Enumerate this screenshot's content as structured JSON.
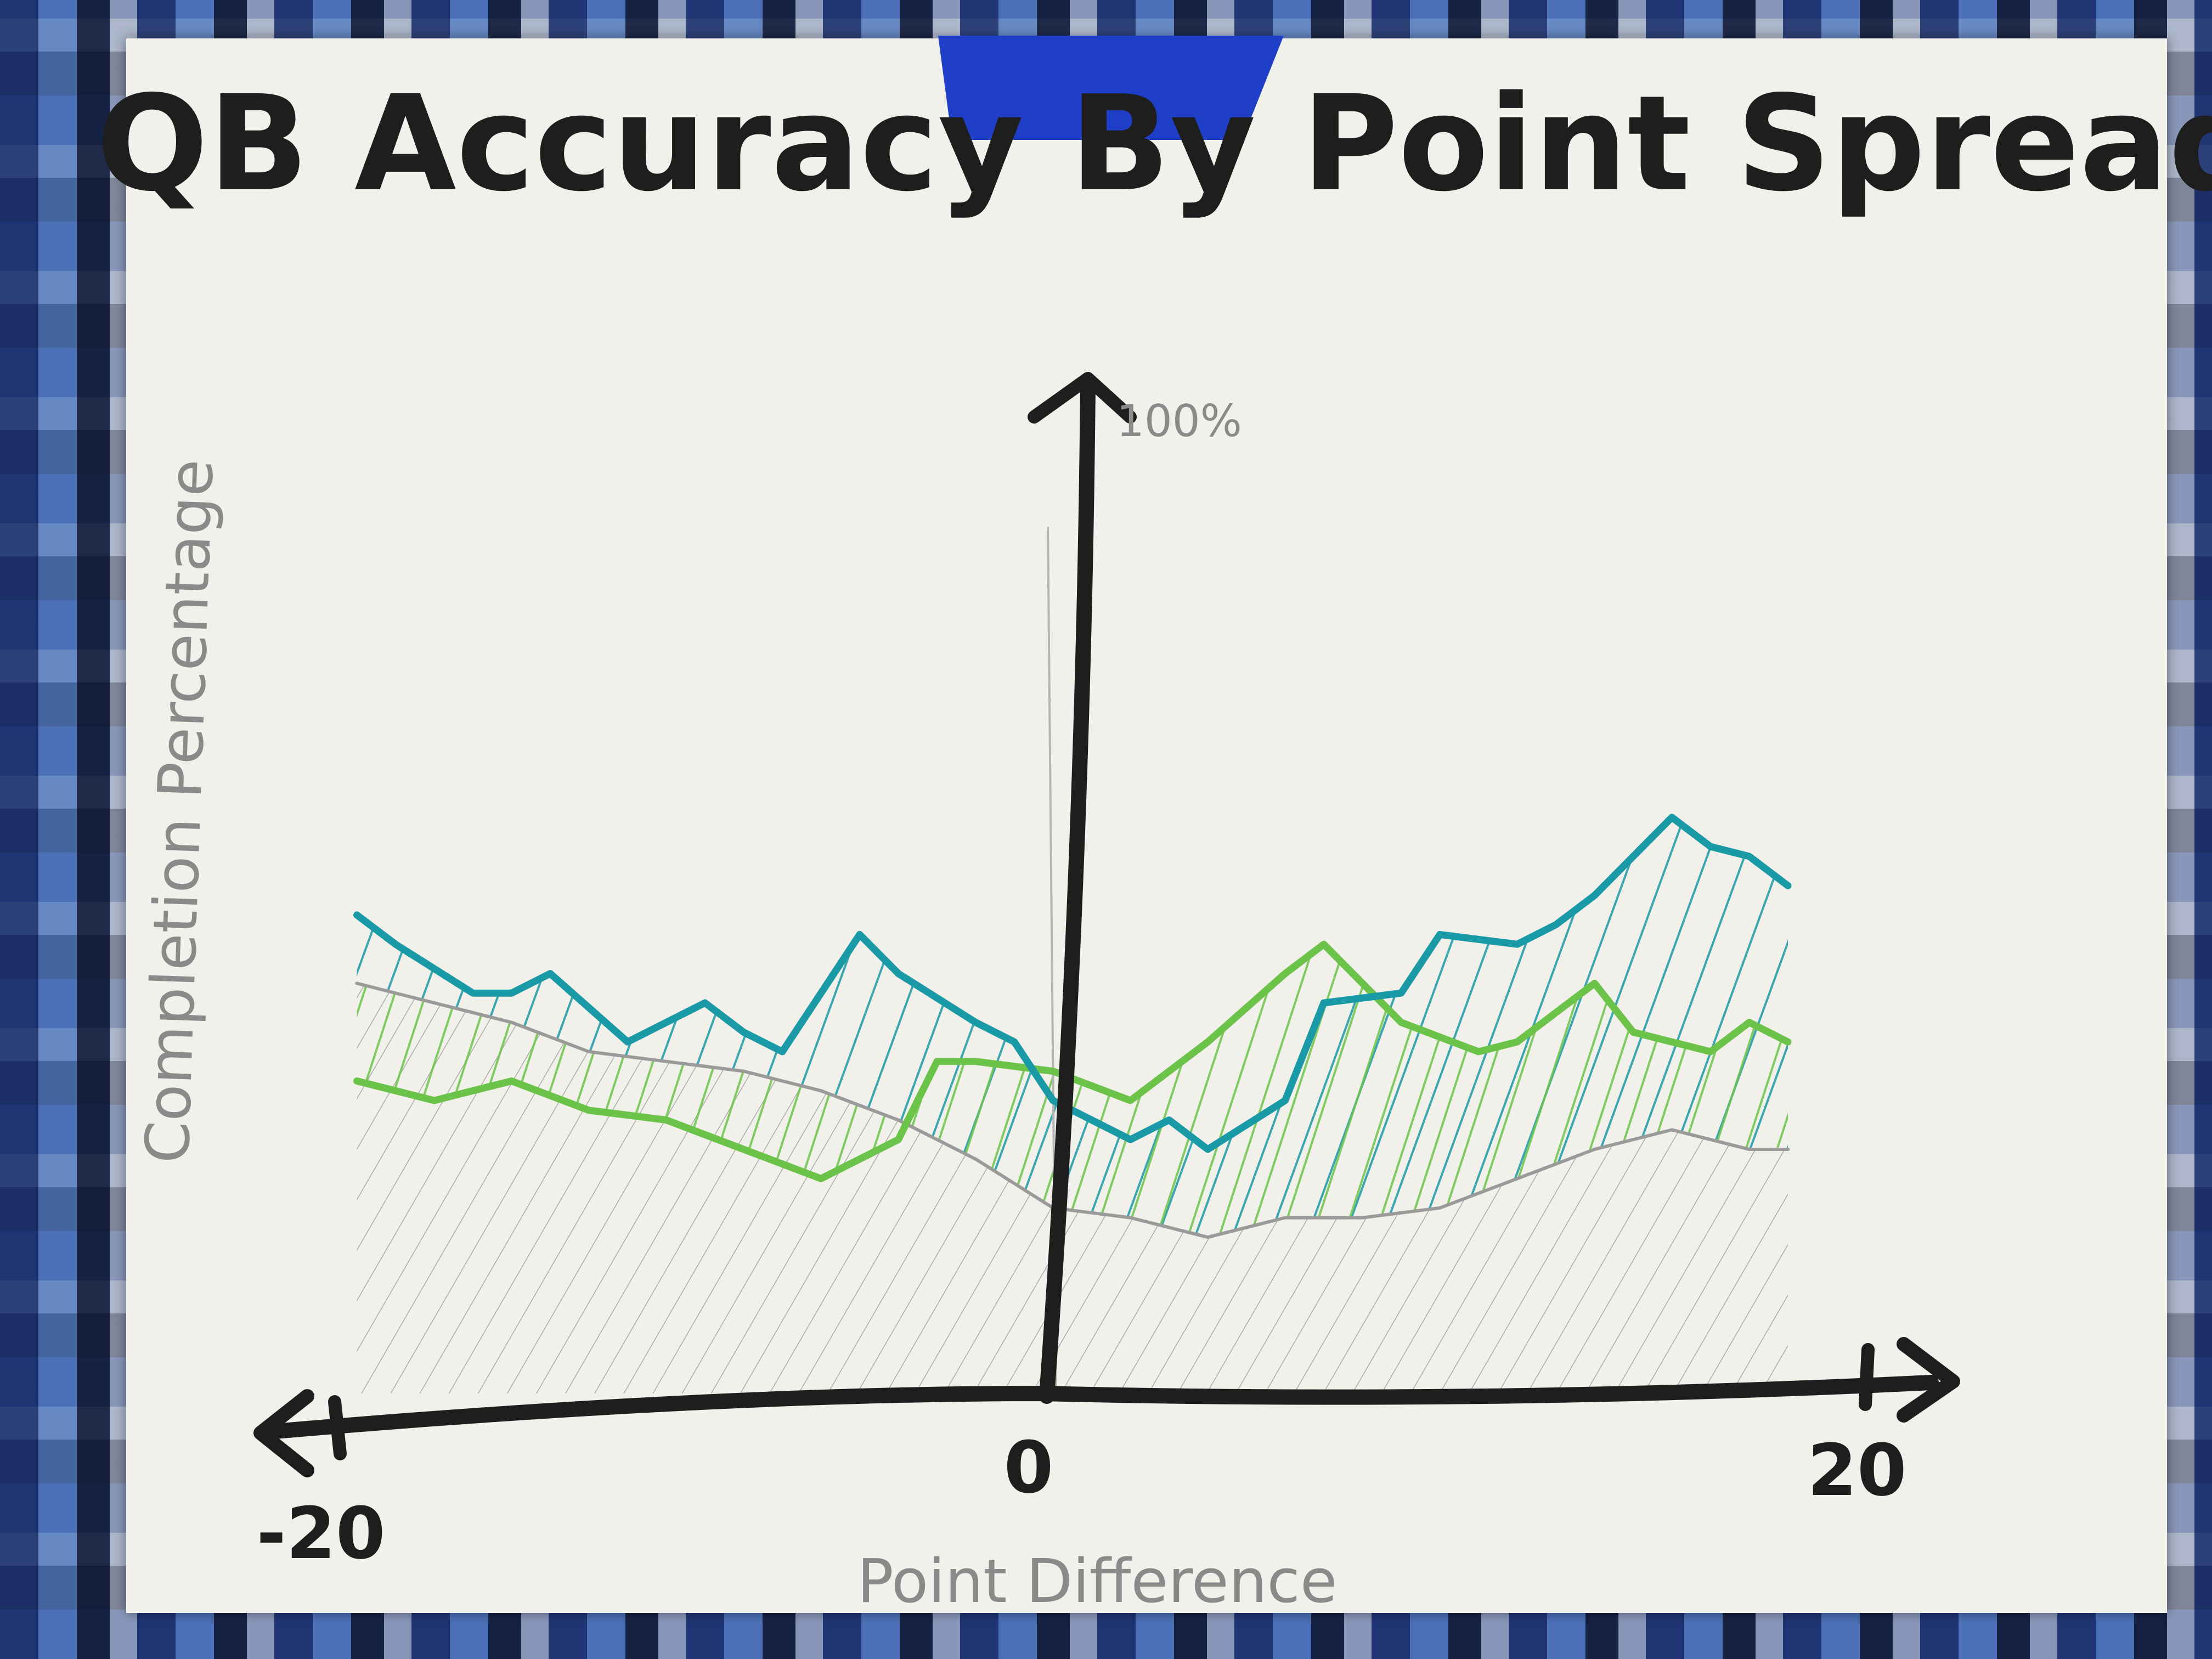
{
  "chart_data": {
    "type": "line",
    "title": "QB Accuracy By Point Spread",
    "xlabel": "Point Difference",
    "ylabel": "Completion Percentage",
    "y_top_label": "100%",
    "x_tick_labels": [
      "-20",
      "0",
      "20"
    ],
    "xlim": [
      -20,
      20
    ],
    "ylim": [
      0,
      100
    ],
    "x_axis_position": 0,
    "grid": false,
    "legend": "none",
    "series": [
      {
        "color": "#1a9aa6",
        "hatched": true,
        "x": [
          -19,
          -18,
          -16,
          -15,
          -14,
          -12,
          -10,
          -9,
          -8,
          -6,
          -5,
          -3,
          -2,
          -1,
          1,
          2,
          3,
          5,
          6,
          8,
          9,
          11,
          12,
          13,
          15,
          16,
          17,
          18
        ],
        "y": [
          49,
          46,
          41,
          41,
          43,
          36,
          40,
          37,
          35,
          47,
          43,
          38,
          36,
          30,
          26,
          28,
          25,
          30,
          40,
          41,
          47,
          46,
          48,
          51,
          59,
          56,
          55,
          52
        ]
      },
      {
        "color": "#6cc34a",
        "hatched": true,
        "x": [
          -19,
          -17,
          -15,
          -13,
          -11,
          -9,
          -7,
          -5,
          -4,
          -3,
          -1,
          1,
          3,
          5,
          6,
          8,
          10,
          11,
          13,
          14,
          16,
          17,
          18
        ],
        "y": [
          32,
          30,
          32,
          29,
          28,
          25,
          22,
          26,
          34,
          34,
          33,
          30,
          36,
          43,
          46,
          38,
          35,
          36,
          42,
          37,
          35,
          38,
          36
        ]
      },
      {
        "color": "#9a9a9a",
        "hatched": true,
        "x": [
          -19,
          -17,
          -15,
          -13,
          -11,
          -9,
          -7,
          -5,
          -3,
          -1,
          1,
          3,
          5,
          7,
          9,
          11,
          13,
          15,
          17,
          18
        ],
        "y": [
          42,
          40,
          38,
          35,
          34,
          33,
          31,
          28,
          24,
          19,
          18,
          16,
          18,
          18,
          19,
          22,
          25,
          27,
          25,
          25
        ]
      }
    ]
  }
}
